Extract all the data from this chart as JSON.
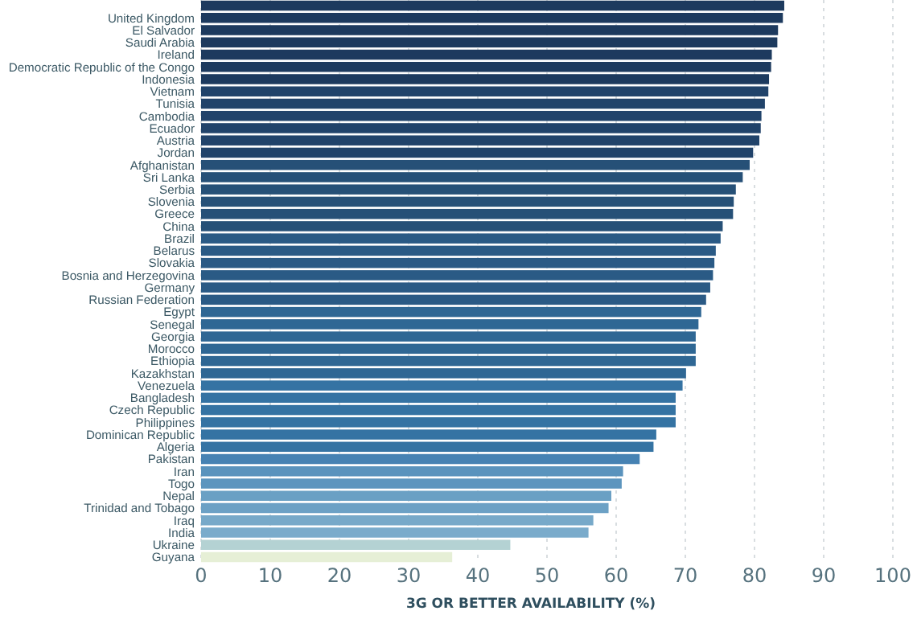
{
  "chart_data": {
    "type": "bar",
    "orientation": "horizontal",
    "xlabel": "3G OR BETTER AVAILABILITY (%)",
    "categories": [
      null,
      "United Kingdom",
      "El Salvador",
      "Saudi Arabia",
      "Ireland",
      "Democratic Republic of the Congo",
      "Indonesia",
      "Vietnam",
      "Tunisia",
      "Cambodia",
      "Ecuador",
      "Austria",
      "Jordan",
      "Afghanistan",
      "Sri Lanka",
      "Serbia",
      "Slovenia",
      "Greece",
      "China",
      "Brazil",
      "Belarus",
      "Slovakia",
      "Bosnia and Herzegovina",
      "Germany",
      "Russian Federation",
      "Egypt",
      "Senegal",
      "Georgia",
      "Morocco",
      "Ethiopia",
      "Kazakhstan",
      "Venezuela",
      "Bangladesh",
      "Czech Republic",
      "Philippines",
      "Dominican Republic",
      "Algeria",
      "Pakistan",
      "Iran",
      "Togo",
      "Nepal",
      "Trinidad and Tobago",
      "Iraq",
      "India",
      "Ukraine",
      "Guyana"
    ],
    "values": [
      84.3,
      84.1,
      83.4,
      83.3,
      82.5,
      82.4,
      82.1,
      82.0,
      81.5,
      81.0,
      80.9,
      80.7,
      79.8,
      79.3,
      78.3,
      77.3,
      77.0,
      76.9,
      75.4,
      75.1,
      74.4,
      74.2,
      74.0,
      73.6,
      73.0,
      72.3,
      71.9,
      71.5,
      71.5,
      71.5,
      70.1,
      69.6,
      68.6,
      68.6,
      68.6,
      65.8,
      65.4,
      63.4,
      61.0,
      60.8,
      59.3,
      58.9,
      56.7,
      56.0,
      44.7,
      36.3
    ],
    "colors": [
      "#1d3a5e",
      "#1d3a5e",
      "#1d3a5e",
      "#1d3a5e",
      "#1d3a5e",
      "#1d3a5e",
      "#1d3a5e",
      "#21436a",
      "#21436a",
      "#21436a",
      "#21436a",
      "#21436a",
      "#21436a",
      "#265077",
      "#265077",
      "#265077",
      "#265077",
      "#265077",
      "#265077",
      "#2a5a85",
      "#2a5a85",
      "#2a5a85",
      "#2a5a85",
      "#2a5a85",
      "#2a5a85",
      "#2f6794",
      "#2f6794",
      "#2f6794",
      "#2f6794",
      "#2f6794",
      "#2f6794",
      "#3573a3",
      "#3573a3",
      "#3573a3",
      "#3573a3",
      "#3573a3",
      "#3573a3",
      "#4682b3",
      "#5a93bd",
      "#5c95be",
      "#6aa0c4",
      "#6ca1c5",
      "#77a9c9",
      "#7aabcb",
      "#b4d2d3",
      "#e6efd6"
    ],
    "xlim": [
      0,
      100
    ],
    "xticks": [
      0,
      10,
      20,
      30,
      40,
      50,
      60,
      70,
      80,
      90,
      100
    ],
    "grid": "x"
  }
}
